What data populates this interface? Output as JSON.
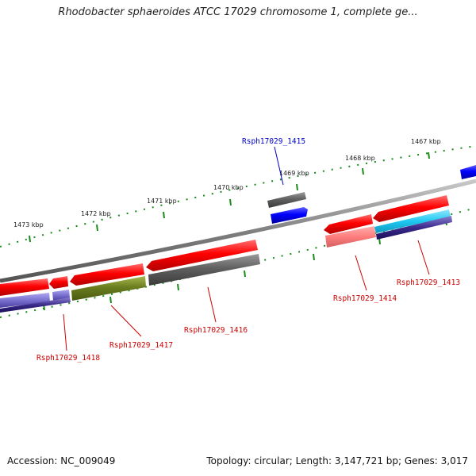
{
  "title": "Rhodobacter sphaeroides ATCC 17029 chromosome 1, complete ge...",
  "footer": {
    "accession": "Accession: NC_009049",
    "topology": "Topology: circular; Length: 3,147,721 bp; Genes: 3,017"
  },
  "scale_labels": {
    "k1473": "1473 kbp",
    "k1472": "1472 kbp",
    "k1471": "1471 kbp",
    "k1470": "1470 kbp",
    "k1469": "1469 kbp",
    "k1468": "1468 kbp",
    "k1467": "1467 kbp"
  },
  "genes": {
    "g1415": "Rsph17029_1415",
    "g1413": "Rsph17029_1413",
    "g1414": "Rsph17029_1414",
    "g1416": "Rsph17029_1416",
    "g1417": "Rsph17029_1417",
    "g1418": "Rsph17029_1418"
  },
  "colors": {
    "backbone": "#808080",
    "gene_red": "#ff0000",
    "gene_blue": "#0000ff",
    "gene_gray": "#606060",
    "gene_olive": "#6b7d1e",
    "gene_cyan": "#1ec8f0",
    "gene_navy": "#3a2a8a",
    "gene_pink": "#ff8080",
    "tick_green": "#1a8a1a",
    "label_red": "#cc0000",
    "label_blue": "#0000cc"
  }
}
